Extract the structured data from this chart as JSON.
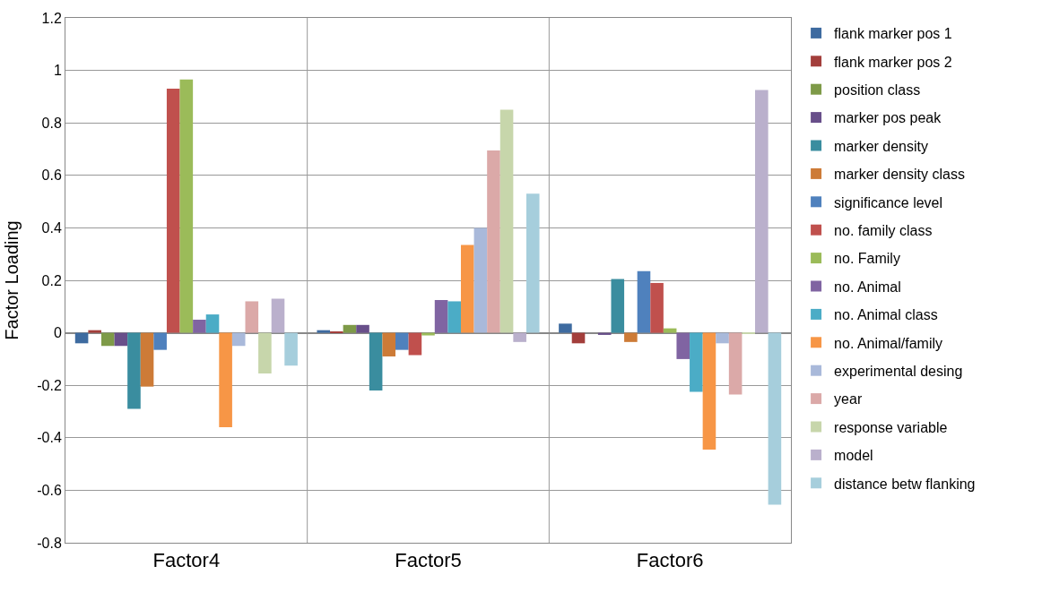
{
  "chart_data": {
    "type": "bar",
    "ylabel": "Factor Loading",
    "categories": [
      "Factor4",
      "Factor5",
      "Factor6"
    ],
    "ylim": [
      -0.8,
      1.2
    ],
    "yticks": [
      {
        "value": -0.8,
        "label": "-0.8"
      },
      {
        "value": -0.6,
        "label": "-0.6"
      },
      {
        "value": -0.4,
        "label": "-0.4"
      },
      {
        "value": -0.2,
        "label": "-0.2"
      },
      0,
      {
        "value": 0.2,
        "label": "0.2"
      },
      {
        "value": 0.4,
        "label": "0.4"
      },
      {
        "value": 0.6,
        "label": "0.6"
      },
      {
        "value": 0.8,
        "label": "0.8"
      },
      1,
      {
        "value": 1.2,
        "label": "1.2"
      }
    ],
    "grid": true,
    "legend": "right",
    "series": [
      {
        "name": "flank marker pos 1",
        "color": "#3e6ba0",
        "values": [
          -0.04,
          0.01,
          0.035
        ]
      },
      {
        "name": "flank marker pos 2",
        "color": "#a33e3b",
        "values": [
          0.01,
          0.005,
          -0.04
        ]
      },
      {
        "name": "position class",
        "color": "#7e9a48",
        "values": [
          -0.05,
          0.03,
          0
        ]
      },
      {
        "name": "marker pos peak",
        "color": "#684f8a",
        "values": [
          -0.05,
          0.03,
          -0.008
        ]
      },
      {
        "name": "marker density",
        "color": "#3a8d9f",
        "values": [
          -0.29,
          -0.22,
          0.205
        ]
      },
      {
        "name": "marker density class",
        "color": "#cd7b37",
        "values": [
          -0.205,
          -0.09,
          -0.035
        ]
      },
      {
        "name": "significance level",
        "color": "#4f81bd",
        "values": [
          -0.065,
          -0.065,
          0.235
        ]
      },
      {
        "name": "no. family class",
        "color": "#c0504d",
        "values": [
          0.93,
          -0.085,
          0.19
        ]
      },
      {
        "name": "no. Family",
        "color": "#9bbb59",
        "values": [
          0.965,
          -0.01,
          0.017
        ]
      },
      {
        "name": "no. Animal",
        "color": "#8064a2",
        "values": [
          0.05,
          0.125,
          -0.1
        ]
      },
      {
        "name": "no. Animal class",
        "color": "#4bacc6",
        "values": [
          0.07,
          0.12,
          -0.225
        ]
      },
      {
        "name": "no. Animal/family",
        "color": "#f79646",
        "values": [
          -0.36,
          0.335,
          -0.445
        ]
      },
      {
        "name": "experimental desing",
        "color": "#a9b9da",
        "values": [
          -0.05,
          0.4,
          -0.04
        ]
      },
      {
        "name": "year",
        "color": "#dba9a8",
        "values": [
          0.12,
          0.695,
          -0.235
        ]
      },
      {
        "name": "response variable",
        "color": "#c7d6ab",
        "values": [
          -0.155,
          0.85,
          -0.003
        ]
      },
      {
        "name": "model",
        "color": "#bab0cc",
        "values": [
          0.13,
          -0.035,
          0.925
        ]
      },
      {
        "name": "distance betw flanking",
        "color": "#a6cedc",
        "values": [
          -0.125,
          0.53,
          -0.655
        ]
      }
    ]
  }
}
